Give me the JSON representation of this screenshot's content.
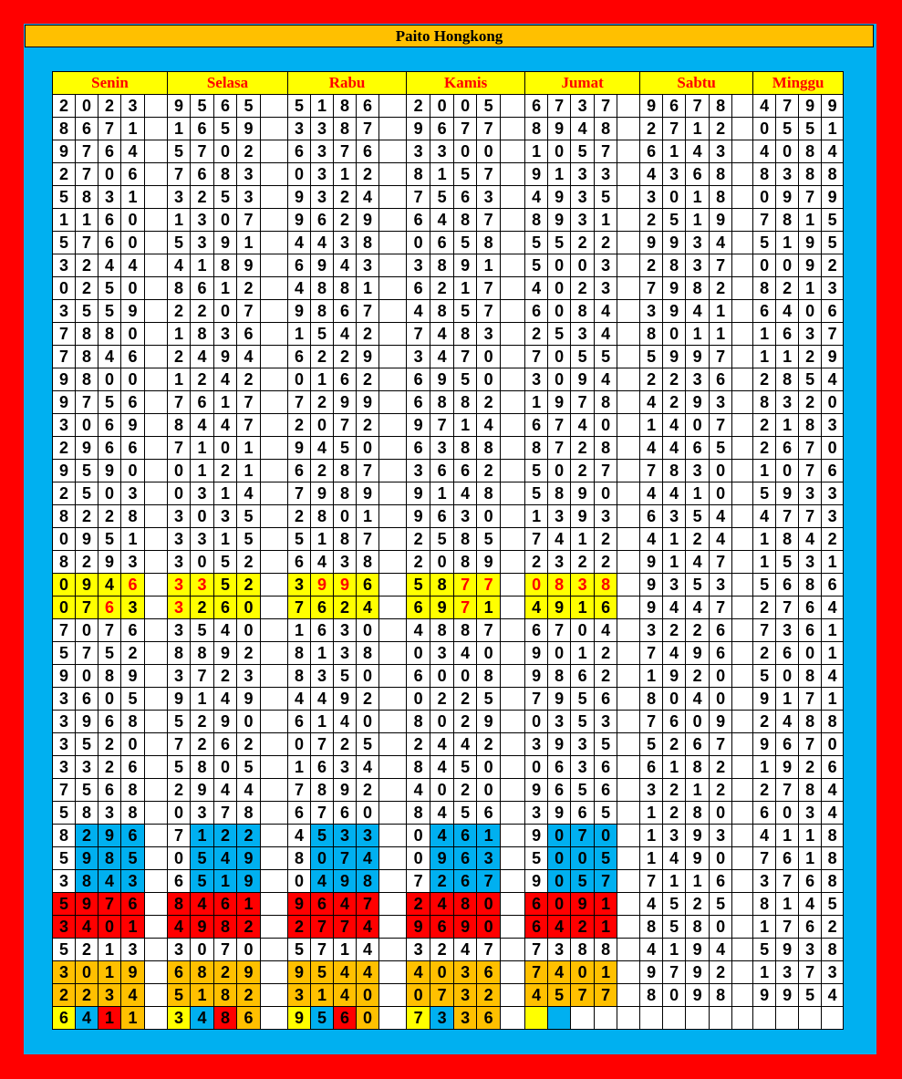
{
  "title": "Paito Hongkong",
  "days": [
    "Senin",
    "Selasa",
    "Rabu",
    "Kamis",
    "Jumat",
    "Sabtu",
    "Minggu"
  ],
  "colors": {
    "W": "#FFFFFF",
    "Y": "#FFFF00",
    "B": "#00B0F0",
    "R": "#FF0000",
    "O": "#FFC000",
    "red_text": "#FF0000",
    "frame": "#FF0000",
    "background": "#00B0F0"
  },
  "rows": [
    [
      "2023",
      "9565",
      "5186",
      "2005",
      "6737",
      "9678",
      "4799"
    ],
    [
      "8671",
      "1659",
      "3387",
      "9677",
      "8948",
      "2712",
      "0551"
    ],
    [
      "9764",
      "5702",
      "6376",
      "3300",
      "1057",
      "6143",
      "4084"
    ],
    [
      "2706",
      "7683",
      "0312",
      "8157",
      "9133",
      "4368",
      "8388"
    ],
    [
      "5831",
      "3253",
      "9324",
      "7563",
      "4935",
      "3018",
      "0979"
    ],
    [
      "1160",
      "1307",
      "9629",
      "6487",
      "8931",
      "2519",
      "7815"
    ],
    [
      "5760",
      "5391",
      "4438",
      "0658",
      "5522",
      "9934",
      "5195"
    ],
    [
      "3244",
      "4189",
      "6943",
      "3891",
      "5003",
      "2837",
      "0092"
    ],
    [
      "0250",
      "8612",
      "4881",
      "6217",
      "4023",
      "7982",
      "8213"
    ],
    [
      "3559",
      "2207",
      "9867",
      "4857",
      "6084",
      "3941",
      "6406"
    ],
    [
      "7880",
      "1836",
      "1542",
      "7483",
      "2534",
      "8011",
      "1637"
    ],
    [
      "7846",
      "2494",
      "6229",
      "3470",
      "7055",
      "5997",
      "1129"
    ],
    [
      "9800",
      "1242",
      "0162",
      "6950",
      "3094",
      "2236",
      "2854"
    ],
    [
      "9756",
      "7617",
      "7299",
      "6882",
      "1978",
      "4293",
      "8320"
    ],
    [
      "3069",
      "8447",
      "2072",
      "9714",
      "6740",
      "1407",
      "2183"
    ],
    [
      "2966",
      "7101",
      "9450",
      "6388",
      "8728",
      "4465",
      "2670"
    ],
    [
      "9590",
      "0121",
      "6287",
      "3662",
      "5027",
      "7830",
      "1076"
    ],
    [
      "2503",
      "0314",
      "7989",
      "9148",
      "5890",
      "4410",
      "5933"
    ],
    [
      "8228",
      "3035",
      "2801",
      "9630",
      "1393",
      "6354",
      "4773"
    ],
    [
      "0951",
      "3315",
      "5187",
      "2585",
      "7412",
      "4124",
      "1842"
    ],
    [
      "8293",
      "3052",
      "6438",
      "2089",
      "2322",
      "9147",
      "1531"
    ],
    [
      "0946",
      "3352",
      "3996",
      "5877",
      "0838",
      "9353",
      "5686"
    ],
    [
      "0763",
      "3260",
      "7624",
      "6971",
      "4916",
      "9447",
      "2764"
    ],
    [
      "7076",
      "3540",
      "1630",
      "4887",
      "6704",
      "3226",
      "7361"
    ],
    [
      "5752",
      "8892",
      "8138",
      "0340",
      "9012",
      "7496",
      "2601"
    ],
    [
      "9089",
      "3723",
      "8350",
      "6008",
      "9862",
      "1920",
      "5084"
    ],
    [
      "3605",
      "9149",
      "4492",
      "0225",
      "7956",
      "8040",
      "9171"
    ],
    [
      "3968",
      "5290",
      "6140",
      "8029",
      "0353",
      "7609",
      "2488"
    ],
    [
      "3520",
      "7262",
      "0725",
      "2442",
      "3935",
      "5267",
      "9670"
    ],
    [
      "3326",
      "5805",
      "1634",
      "8450",
      "0636",
      "6182",
      "1926"
    ],
    [
      "7568",
      "2944",
      "7892",
      "4020",
      "9656",
      "3212",
      "2784"
    ],
    [
      "5838",
      "0378",
      "6760",
      "8456",
      "3965",
      "1280",
      "6034"
    ],
    [
      "8296",
      "7122",
      "4533",
      "0461",
      "9070",
      "1393",
      "4118"
    ],
    [
      "5985",
      "0549",
      "8074",
      "0963",
      "5005",
      "1490",
      "7618"
    ],
    [
      "3843",
      "6519",
      "0498",
      "7267",
      "9057",
      "7116",
      "3768"
    ],
    [
      "5976",
      "8461",
      "9647",
      "2480",
      "6091",
      "4525",
      "8145"
    ],
    [
      "3401",
      "4982",
      "2774",
      "9690",
      "6421",
      "8580",
      "1762"
    ],
    [
      "5213",
      "3070",
      "5714",
      "3247",
      "7388",
      "4194",
      "5938"
    ],
    [
      "3019",
      "6829",
      "9544",
      "4036",
      "7401",
      "9792",
      "1373"
    ],
    [
      "2234",
      "5182",
      "3140",
      "0732",
      "4577",
      "8098",
      "9954"
    ],
    [
      "6411",
      "3486",
      "9560",
      "7336",
      "",
      "",
      ""
    ]
  ],
  "styles": [
    {
      "row": 21,
      "day": 0,
      "bg": "YYYY",
      "fg": "---r"
    },
    {
      "row": 21,
      "day": 1,
      "bg": "YYYY",
      "fg": "rr--"
    },
    {
      "row": 21,
      "day": 2,
      "bg": "YYYY",
      "fg": "-rr-"
    },
    {
      "row": 21,
      "day": 3,
      "bg": "YYYY",
      "fg": "--rr"
    },
    {
      "row": 21,
      "day": 4,
      "bg": "YYYY",
      "fg": "rrrr"
    },
    {
      "row": 22,
      "day": 0,
      "bg": "YYYY",
      "fg": "--r-"
    },
    {
      "row": 22,
      "day": 1,
      "bg": "YYYY",
      "fg": "r---"
    },
    {
      "row": 22,
      "day": 2,
      "bg": "YYYY",
      "fg": "----"
    },
    {
      "row": 22,
      "day": 3,
      "bg": "YYYY",
      "fg": "--r-"
    },
    {
      "row": 22,
      "day": 4,
      "bg": "YYYY",
      "fg": "----"
    },
    {
      "row": 32,
      "days": [
        0,
        1,
        2,
        3,
        4
      ],
      "bg": "WBBB"
    },
    {
      "row": 33,
      "days": [
        0,
        1,
        2,
        3,
        4
      ],
      "bg": "WBBB"
    },
    {
      "row": 34,
      "days": [
        0,
        1,
        2,
        3,
        4
      ],
      "bg": "WBBB"
    },
    {
      "row": 35,
      "days": [
        0,
        1,
        2,
        3,
        4
      ],
      "bg": "RRRR"
    },
    {
      "row": 36,
      "days": [
        0,
        1,
        2,
        3,
        4
      ],
      "bg": "RRRR"
    },
    {
      "row": 38,
      "days": [
        0,
        1,
        2,
        3,
        4
      ],
      "bg": "OOOO"
    },
    {
      "row": 39,
      "days": [
        0,
        1,
        2,
        3,
        4
      ],
      "bg": "OOOO"
    },
    {
      "row": 40,
      "days": [
        0,
        1,
        2
      ],
      "bg": "YBRO"
    },
    {
      "row": 40,
      "day": 3,
      "bg": "YBOO"
    },
    {
      "row": 40,
      "day": 4,
      "bg": "YBWW"
    }
  ]
}
